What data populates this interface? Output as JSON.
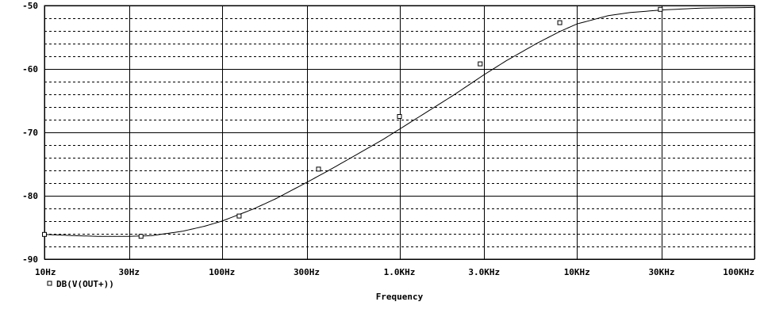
{
  "chart_data": {
    "type": "line",
    "title": "",
    "xlabel": "Frequency",
    "ylabel": "",
    "x_scale": "log",
    "xlim": [
      10,
      100000
    ],
    "ylim": [
      -90,
      -50
    ],
    "grid": true,
    "legend_position": "bottom-left",
    "x_ticks": [
      10,
      30,
      100,
      300,
      1000,
      3000,
      10000,
      30000,
      100000
    ],
    "x_tick_labels": [
      "10Hz",
      "30Hz",
      "100Hz",
      "300Hz",
      "1.0KHz",
      "3.0KHz",
      "10KHz",
      "30KHz",
      "100KHz"
    ],
    "y_ticks": [
      -90,
      -80,
      -70,
      -60,
      -50
    ],
    "y_tick_labels": [
      "-90",
      "-80",
      "-70",
      "-60",
      "-50"
    ],
    "series": [
      {
        "name": "DB(V(OUT+))",
        "marker": "hollow-square",
        "x": [
          10,
          15,
          20,
          30,
          40,
          60,
          80,
          100,
          150,
          200,
          300,
          400,
          600,
          800,
          1000,
          1500,
          2000,
          3000,
          4000,
          6000,
          8000,
          10000,
          15000,
          20000,
          30000,
          50000,
          100000
        ],
        "y": [
          -86.1,
          -86.3,
          -86.4,
          -86.4,
          -86.3,
          -85.6,
          -84.8,
          -84.0,
          -82.1,
          -80.5,
          -77.9,
          -76.0,
          -73.2,
          -71.2,
          -69.5,
          -66.4,
          -64.2,
          -60.9,
          -58.7,
          -55.9,
          -54.1,
          -52.9,
          -51.6,
          -51.1,
          -50.7,
          -50.4,
          -50.3
        ],
        "marker_x": [
          10,
          35,
          125,
          350,
          1000,
          2850,
          8000,
          29500
        ],
        "marker_y": [
          -86.1,
          -86.4,
          -83.2,
          -75.8,
          -67.5,
          -59.2,
          -52.7,
          -50.6
        ]
      }
    ]
  }
}
